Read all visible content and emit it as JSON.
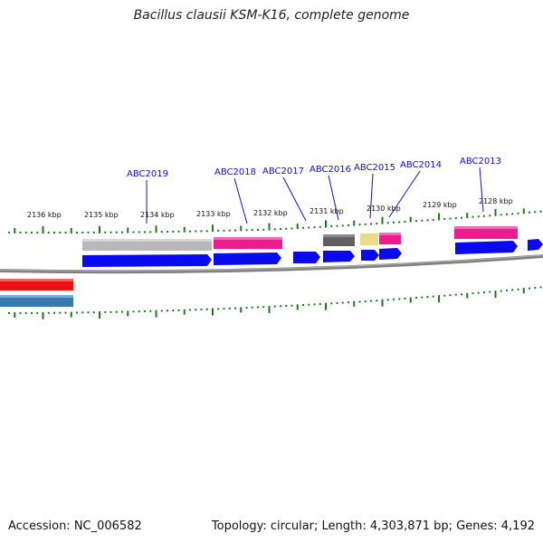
{
  "title": "Bacillus clausii KSM-K16, complete genome",
  "footer": {
    "accession": "Accession: NC_006582",
    "summary": "Topology: circular; Length: 4,303,871 bp; Genes: 4,192"
  },
  "kbp_labels": [
    "2136 kbp",
    "2135 kbp",
    "2134 kbp",
    "2133 kbp",
    "2132 kbp",
    "2131 kbp",
    "2130 kbp",
    "2129 kbp",
    "2128 kbp"
  ],
  "gene_labels": [
    "ABC2019",
    "ABC2018",
    "ABC2017",
    "ABC2016",
    "ABC2015",
    "ABC2014",
    "ABC2013"
  ],
  "colors": {
    "backbone": "#808080",
    "tick": "#1a7a1a",
    "cds": "#0a0aee",
    "gene_label": "#1010c8",
    "feature_gray": "#b8b8b8",
    "feature_pink": "#ee1a90",
    "feature_dark": "#606060",
    "feature_yellow": "#e8dc8a",
    "feature_red": "#ee1111",
    "feature_steel": "#3a78b0"
  }
}
